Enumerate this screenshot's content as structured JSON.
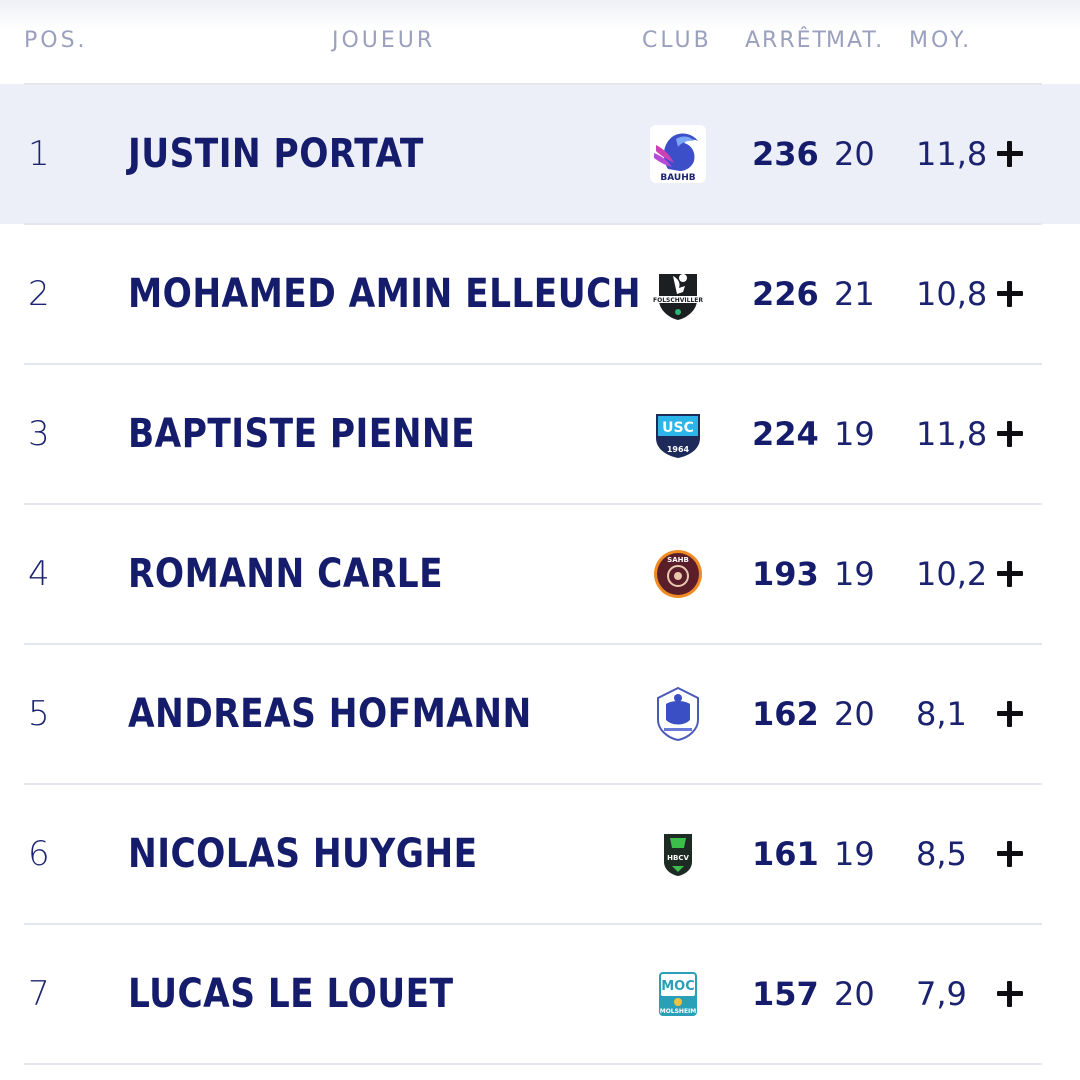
{
  "headers": {
    "pos": "POS.",
    "player": "JOUEUR",
    "club": "CLUB",
    "saves": "ARRÊT",
    "matches": "MAT.",
    "avg": "MOY."
  },
  "rows": [
    {
      "pos": "1",
      "name": "JUSTIN PORTAT",
      "club_logo": "BAUHB",
      "saves": "236",
      "matches": "20",
      "avg": "11,8",
      "highlighted": true
    },
    {
      "pos": "2",
      "name": "MOHAMED AMIN ELLEUCH",
      "club_logo": "FOLSCHVILLER",
      "saves": "226",
      "matches": "21",
      "avg": "10,8"
    },
    {
      "pos": "3",
      "name": "BAPTISTE PIENNE",
      "club_logo": "USC 1964",
      "saves": "224",
      "matches": "19",
      "avg": "11,8"
    },
    {
      "pos": "4",
      "name": "ROMANN CARLE",
      "club_logo": "SAHB",
      "saves": "193",
      "matches": "19",
      "avg": "10,2"
    },
    {
      "pos": "5",
      "name": "ANDREAS HOFMANN",
      "club_logo": "SAINT-GRATIEN",
      "saves": "162",
      "matches": "20",
      "avg": "8,1"
    },
    {
      "pos": "6",
      "name": "NICOLAS HUYGHE",
      "club_logo": "HBCV",
      "saves": "161",
      "matches": "19",
      "avg": "8,5"
    },
    {
      "pos": "7",
      "name": "LUCAS LE LOUET",
      "club_logo": "MOLSHEIM",
      "saves": "157",
      "matches": "20",
      "avg": "7,9"
    }
  ],
  "icons": {
    "expand": "plus-icon"
  },
  "colors": {
    "text": "#141c6b",
    "header": "#9aa0bd",
    "highlight": "#eceff8",
    "divider": "#e4e6ee"
  }
}
